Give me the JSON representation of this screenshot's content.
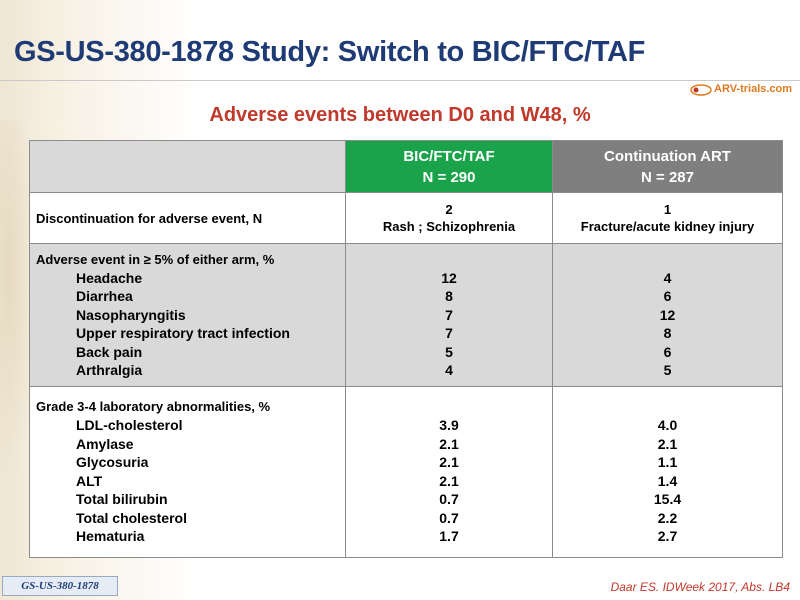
{
  "title": "GS-US-380-1878 Study: Switch to BIC/FTC/TAF",
  "logo": {
    "text": "ARV-trials.com"
  },
  "subtitle": "Adverse events between D0 and W48, %",
  "table": {
    "header": {
      "bic": {
        "line1": "BIC/FTC/TAF",
        "line2": "N = 290"
      },
      "cont": {
        "line1": "Continuation ART",
        "line2": "N = 287"
      }
    },
    "discontinuation": {
      "label": "Discontinuation for adverse event, N",
      "bic": {
        "line1": "2",
        "line2": "Rash ; Schizophrenia"
      },
      "cont": {
        "line1": "1",
        "line2": "Fracture/acute kidney injury"
      }
    },
    "adverse_events": {
      "label": "Adverse event in ≥ 5% of either arm, %",
      "items": [
        {
          "name": "Headache",
          "bic": "12",
          "cont": "4"
        },
        {
          "name": "Diarrhea",
          "bic": "8",
          "cont": "6"
        },
        {
          "name": "Nasopharyngitis",
          "bic": "7",
          "cont": "12"
        },
        {
          "name": "Upper respiratory tract infection",
          "bic": "7",
          "cont": "8"
        },
        {
          "name": "Back pain",
          "bic": "5",
          "cont": "6"
        },
        {
          "name": "Arthralgia",
          "bic": "4",
          "cont": "5"
        }
      ]
    },
    "lab_abnormalities": {
      "label": "Grade 3-4 laboratory abnormalities, %",
      "items": [
        {
          "name": "LDL-cholesterol",
          "bic": "3.9",
          "cont": "4.0"
        },
        {
          "name": "Amylase",
          "bic": "2.1",
          "cont": "2.1"
        },
        {
          "name": "Glycosuria",
          "bic": "2.1",
          "cont": "1.1"
        },
        {
          "name": "ALT",
          "bic": "2.1",
          "cont": "1.4"
        },
        {
          "name": "Total bilirubin",
          "bic": "0.7",
          "cont": "15.4"
        },
        {
          "name": "Total cholesterol",
          "bic": "0.7",
          "cont": "2.2"
        },
        {
          "name": "Hematuria",
          "bic": "1.7",
          "cont": "2.7"
        }
      ]
    }
  },
  "footer": {
    "badge": "GS-US-380-1878",
    "citation": "Daar ES. IDWeek 2017, Abs. LB4"
  },
  "colors": {
    "title": "#1f3b76",
    "subtitle": "#c0392b",
    "bic_header": "#1aa34a",
    "cont_header": "#7f7f7f",
    "shaded_row": "#d9d9d9"
  }
}
